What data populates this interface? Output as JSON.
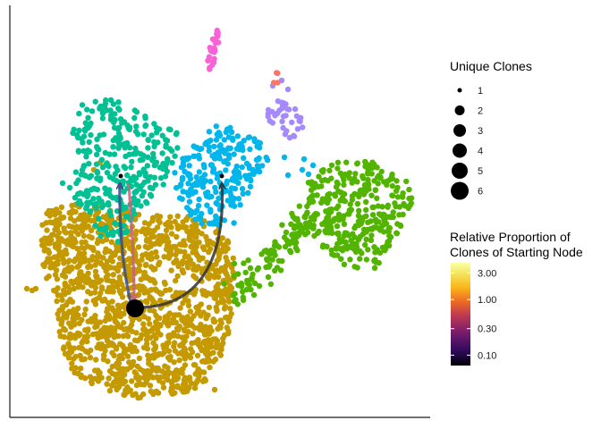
{
  "chart_data": {
    "type": "scatter",
    "title": "",
    "xlabel": "",
    "ylabel": "",
    "axis_ticks": false,
    "grid": false,
    "cluster_colors": [
      "#C49A00",
      "#00C094",
      "#00B6EB",
      "#53B400",
      "#A58AFF",
      "#FB61D7",
      "#F8766D"
    ],
    "clusters": [
      {
        "color": "#C49A00",
        "approx_points": 1400
      },
      {
        "color": "#00C094",
        "approx_points": 320
      },
      {
        "color": "#00B6EB",
        "approx_points": 230
      },
      {
        "color": "#53B400",
        "approx_points": 330
      },
      {
        "color": "#A58AFF",
        "approx_points": 35
      },
      {
        "color": "#FB61D7",
        "approx_points": 25
      },
      {
        "color": "#F8766D",
        "approx_points": 4
      }
    ],
    "nodes": [
      {
        "id": "start",
        "role": "starting node",
        "unique_clones": 6
      },
      {
        "id": "left",
        "unique_clones": 1
      },
      {
        "id": "right",
        "unique_clones": 1
      }
    ],
    "edges": [
      {
        "from": "start",
        "to": "left",
        "color": "#3E4A89"
      },
      {
        "from": "left",
        "to": "start",
        "color": "#C4637B"
      },
      {
        "from": "start",
        "to": "right",
        "color": "#333333"
      }
    ],
    "legend_size": {
      "title": "Unique Clones",
      "labels": [
        "1",
        "2",
        "3",
        "4",
        "5",
        "6"
      ],
      "position": "right"
    },
    "legend_color": {
      "title_line1": "Relative Proportion of",
      "title_line2": "Clones of Starting Node",
      "labels": [
        "3.00",
        "1.00",
        "0.30",
        "0.10"
      ],
      "scale": "log",
      "palette": "inferno",
      "position": "right"
    }
  }
}
